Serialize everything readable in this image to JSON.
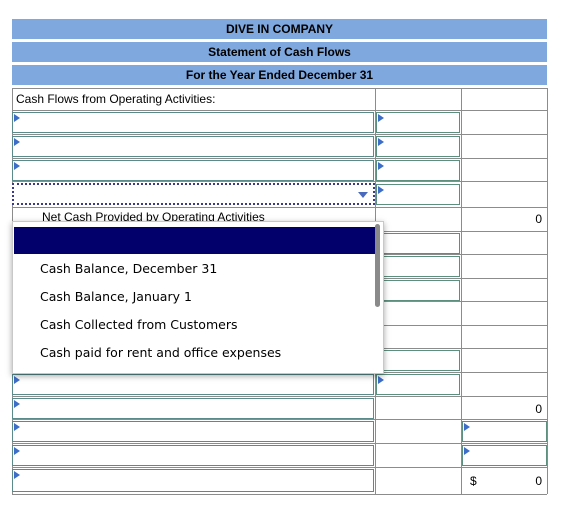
{
  "header": {
    "company": "DIVE IN COMPANY",
    "statement": "Statement of Cash Flows",
    "period": "For the Year Ended December 31"
  },
  "section_label": "Cash Flows from Operating Activities:",
  "net_operating_label": "Net Cash Provided by Operating Activities",
  "values": {
    "net_operating": "0",
    "subtotal": "0",
    "dollar_sign": "$",
    "ending": "0"
  },
  "dropdown": {
    "options": [
      "",
      "Cash Balance, December 31",
      "Cash Balance, January 1",
      "Cash Collected from Customers",
      "Cash paid for rent and office expenses"
    ]
  },
  "colors": {
    "header_bg": "#7fa8df",
    "highlight": "#02006b",
    "arrow": "#3c6ec8"
  }
}
